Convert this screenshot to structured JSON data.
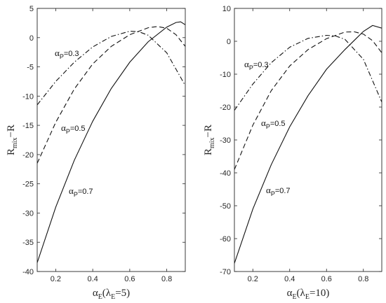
{
  "chart_data": [
    {
      "type": "line",
      "ylabel_main": "R",
      "ylabel_sub": "mix",
      "ylabel_tail": "−R",
      "xlabel_main": "α",
      "xlabel_sub1": "E",
      "xlabel_mid": "(λ",
      "xlabel_sub2": "E",
      "xlabel_tail": "=5)",
      "xlim": [
        0.1,
        0.9
      ],
      "ylim": [
        -40,
        5
      ],
      "xticks": [
        0.2,
        0.4,
        0.6,
        0.8
      ],
      "yticks": [
        5,
        0,
        -5,
        -10,
        -15,
        -20,
        -25,
        -30,
        -35,
        -40
      ],
      "series": [
        {
          "name": "αP=0.3",
          "label": "P",
          "label_val": "=0.3",
          "style": "dashdot",
          "x": [
            0.1,
            0.2,
            0.3,
            0.4,
            0.5,
            0.6,
            0.65,
            0.7,
            0.8,
            0.9
          ],
          "y": [
            -11.5,
            -7.5,
            -4.2,
            -1.6,
            0.2,
            1.1,
            1.0,
            0.4,
            -2.6,
            -8.2
          ]
        },
        {
          "name": "αP=0.5",
          "label": "P",
          "label_val": "=0.5",
          "style": "dashed",
          "x": [
            0.1,
            0.2,
            0.3,
            0.4,
            0.5,
            0.6,
            0.7,
            0.75,
            0.8,
            0.85,
            0.9
          ],
          "y": [
            -21.5,
            -14.5,
            -8.8,
            -4.5,
            -1.5,
            0.5,
            1.7,
            1.9,
            1.6,
            0.5,
            -1.5
          ]
        },
        {
          "name": "αP=0.7",
          "label": "P",
          "label_val": "=0.7",
          "style": "solid",
          "x": [
            0.1,
            0.2,
            0.3,
            0.4,
            0.5,
            0.6,
            0.7,
            0.8,
            0.85,
            0.875,
            0.9
          ],
          "y": [
            -38.5,
            -29.0,
            -21.0,
            -14.3,
            -8.7,
            -4.2,
            -0.7,
            1.8,
            2.6,
            2.7,
            2.2
          ]
        }
      ]
    },
    {
      "type": "line",
      "ylabel_main": "R",
      "ylabel_sub": "mix",
      "ylabel_tail": "−R",
      "xlabel_main": "α",
      "xlabel_sub1": "E",
      "xlabel_mid": "(λ",
      "xlabel_sub2": "E",
      "xlabel_tail": "=10)",
      "xlim": [
        0.1,
        0.9
      ],
      "ylim": [
        -70,
        10
      ],
      "xticks": [
        0.2,
        0.4,
        0.6,
        0.8
      ],
      "yticks": [
        10,
        0,
        -10,
        -20,
        -30,
        -40,
        -50,
        -60,
        -70
      ],
      "series": [
        {
          "name": "αP=0.3",
          "label": "P",
          "label_val": "=0.3",
          "style": "dashdot",
          "x": [
            0.1,
            0.2,
            0.3,
            0.4,
            0.5,
            0.6,
            0.65,
            0.7,
            0.8,
            0.9
          ],
          "y": [
            -21.0,
            -13.0,
            -6.5,
            -1.8,
            0.9,
            1.8,
            1.6,
            0.6,
            -5.5,
            -18.5
          ]
        },
        {
          "name": "αP=0.5",
          "label": "P",
          "label_val": "=0.5",
          "style": "dashed",
          "x": [
            0.1,
            0.2,
            0.3,
            0.4,
            0.5,
            0.6,
            0.7,
            0.75,
            0.8,
            0.85,
            0.9
          ],
          "y": [
            -39.0,
            -25.5,
            -15.0,
            -7.5,
            -2.5,
            0.8,
            2.8,
            2.9,
            2.2,
            0.2,
            -3.5
          ]
        },
        {
          "name": "αP=0.7",
          "label": "P",
          "label_val": "=0.7",
          "style": "solid",
          "x": [
            0.1,
            0.2,
            0.3,
            0.4,
            0.5,
            0.6,
            0.7,
            0.8,
            0.85,
            0.9
          ],
          "y": [
            -67.5,
            -51.0,
            -37.5,
            -26.0,
            -16.5,
            -8.5,
            -2.5,
            3.0,
            4.8,
            4.0
          ]
        }
      ]
    }
  ]
}
